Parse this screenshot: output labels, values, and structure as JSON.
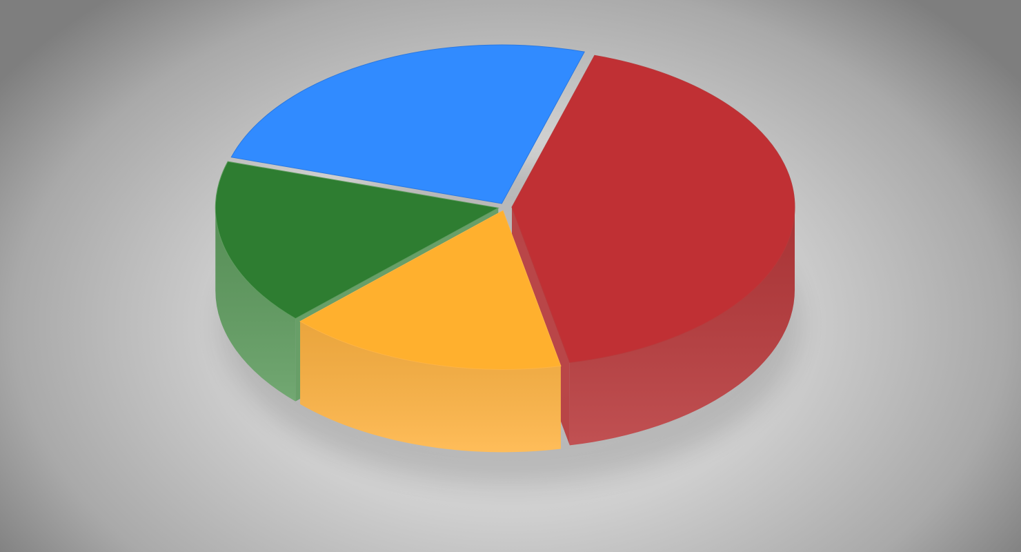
{
  "chart_data": {
    "type": "pie",
    "style": "3d-extruded",
    "title": "",
    "legend": "none",
    "data_labels": "none",
    "slices": [
      {
        "value": 42,
        "color": "#c03034",
        "side_color": "#b8393b"
      },
      {
        "value": 16,
        "color": "#ffb02e",
        "side_color": "#ffb443"
      },
      {
        "value": 17,
        "color": "#2e7d31",
        "side_color": "#5f9c5f"
      },
      {
        "value": 25,
        "color": "#318bff",
        "side_color": "#2a78e0"
      }
    ]
  }
}
